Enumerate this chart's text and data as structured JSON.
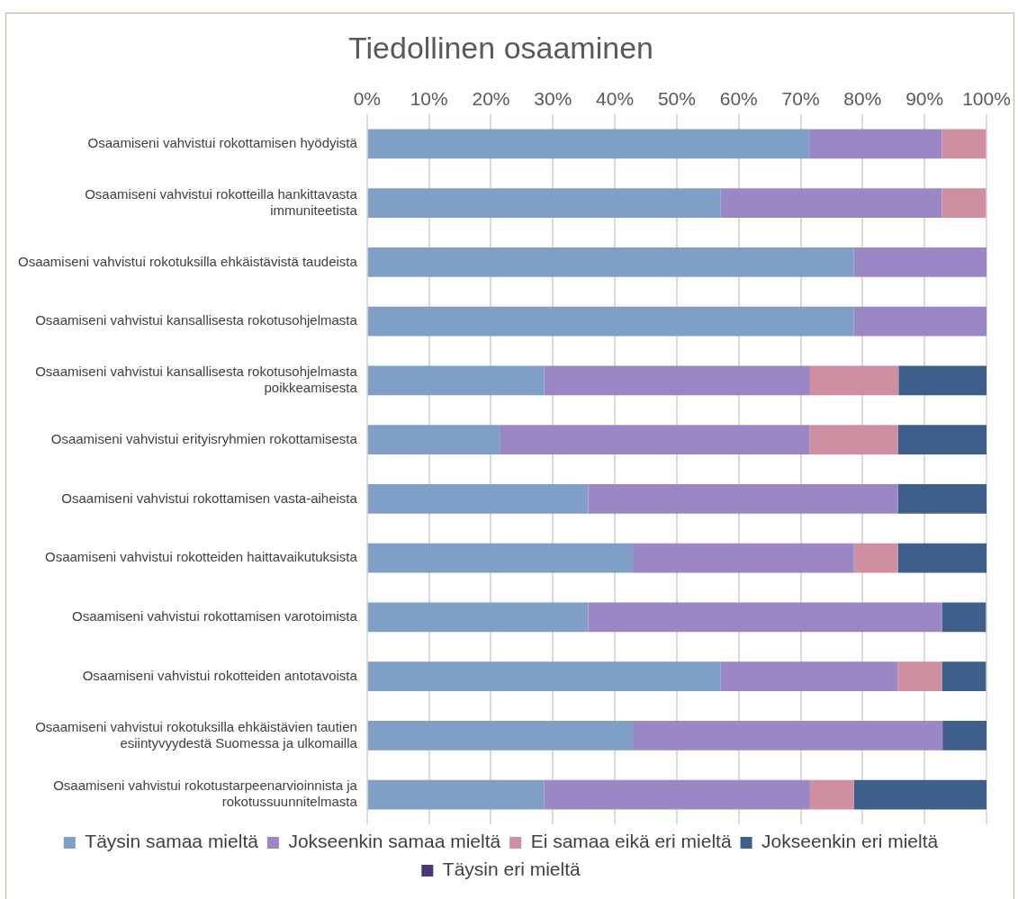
{
  "chart_data": {
    "type": "bar",
    "orientation": "horizontal",
    "stacked": true,
    "title": "Tiedollinen osaaminen",
    "categories": [
      "Osaamiseni vahvistui rokottamisen hyödyistä",
      "Osaamiseni vahvistui rokotteilla hankittavasta immuniteetista",
      "Osaamiseni vahvistui rokotuksilla ehkäistävistä taudeista",
      "Osaamiseni vahvistui kansallisesta rokotusohjelmasta",
      "Osaamiseni vahvistui kansallisesta rokotusohjelmasta poikkeamisesta",
      "Osaamiseni vahvistui erityisryhmien rokottamisesta",
      "Osaamiseni vahvistui rokottamisen vasta-aiheista",
      "Osaamiseni vahvistui rokotteiden haittavaikutuksista",
      "Osaamiseni vahvistui rokottamisen varotoimista",
      "Osaamiseni vahvistui rokotteiden antotavoista",
      "Osaamiseni vahvistui rokotuksilla ehkäistävien tautien esiintyvyydestä Suomessa ja ulkomailla",
      "Osaamiseni vahvistui rokotustarpeenarvioinnista ja rokotussuunnitelmasta"
    ],
    "series": [
      {
        "name": "Täysin samaa mieltä",
        "color": "#7f9fc7",
        "values": [
          71.4,
          57.1,
          78.6,
          78.6,
          28.6,
          21.4,
          35.7,
          42.9,
          35.7,
          57.1,
          42.9,
          28.6
        ]
      },
      {
        "name": "Jokseenkin samaa mieltä",
        "color": "#9b87c3",
        "values": [
          21.4,
          35.7,
          21.4,
          21.4,
          42.9,
          50,
          50,
          35.7,
          57.1,
          28.6,
          50,
          42.9
        ]
      },
      {
        "name": "Ei samaa eikä eri mieltä",
        "color": "#d08fa0",
        "values": [
          7.1,
          7.1,
          0,
          0,
          14.3,
          14.3,
          0,
          7.1,
          0,
          7.1,
          0,
          7.1
        ]
      },
      {
        "name": "Jokseenkin eri mieltä",
        "color": "#3d5f8a",
        "values": [
          0,
          0,
          0,
          0,
          14.3,
          14.3,
          14.3,
          14.3,
          7.1,
          7.1,
          7.1,
          21.4
        ]
      },
      {
        "name": "Täysin eri mieltä",
        "color": "#4b3578",
        "values": [
          0,
          0,
          0,
          0,
          0,
          0,
          0,
          0,
          0,
          0,
          0,
          0
        ]
      }
    ],
    "xlim": [
      0,
      100
    ],
    "xticks": [
      {
        "value": 0,
        "label": "0%"
      },
      {
        "value": 10,
        "label": "10%"
      },
      {
        "value": 20,
        "label": "20%"
      },
      {
        "value": 30,
        "label": "30%"
      },
      {
        "value": 40,
        "label": "40%"
      },
      {
        "value": 50,
        "label": "50%"
      },
      {
        "value": 60,
        "label": "60%"
      },
      {
        "value": 70,
        "label": "70%"
      },
      {
        "value": 80,
        "label": "80%"
      },
      {
        "value": 90,
        "label": "90%"
      },
      {
        "value": 100,
        "label": "100%"
      }
    ],
    "grid": "x",
    "legend": "bottom"
  }
}
